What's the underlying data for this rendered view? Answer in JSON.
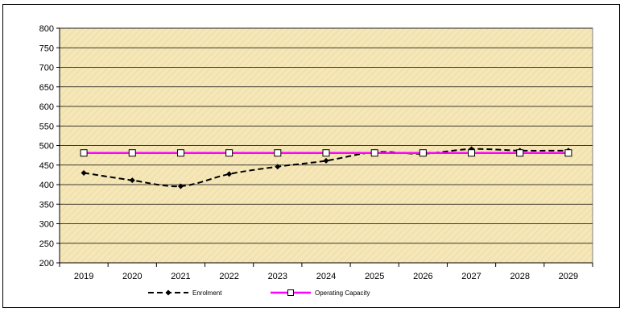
{
  "chart_data": {
    "type": "line",
    "title": "",
    "xlabel": "",
    "ylabel": "",
    "categories": [
      "2019",
      "2020",
      "2021",
      "2022",
      "2023",
      "2024",
      "2025",
      "2026",
      "2027",
      "2028",
      "2029"
    ],
    "ylim": [
      200,
      800
    ],
    "yticks": [
      200,
      250,
      300,
      350,
      400,
      450,
      500,
      550,
      600,
      650,
      700,
      750,
      800
    ],
    "grid": true,
    "legend_position": "bottom",
    "plot_background": "#f5e7b8",
    "series": [
      {
        "name": "Enrolment",
        "color": "#000000",
        "line_style": "dashed",
        "marker": "diamond",
        "values": [
          430,
          411,
          396,
          427,
          446,
          461,
          483,
          479,
          491,
          487,
          487
        ]
      },
      {
        "name": "Operating Capacity",
        "color": "#ff00ff",
        "line_style": "solid",
        "marker": "square",
        "values": [
          481,
          481,
          481,
          481,
          481,
          481,
          481,
          481,
          481,
          481,
          481
        ]
      }
    ]
  }
}
